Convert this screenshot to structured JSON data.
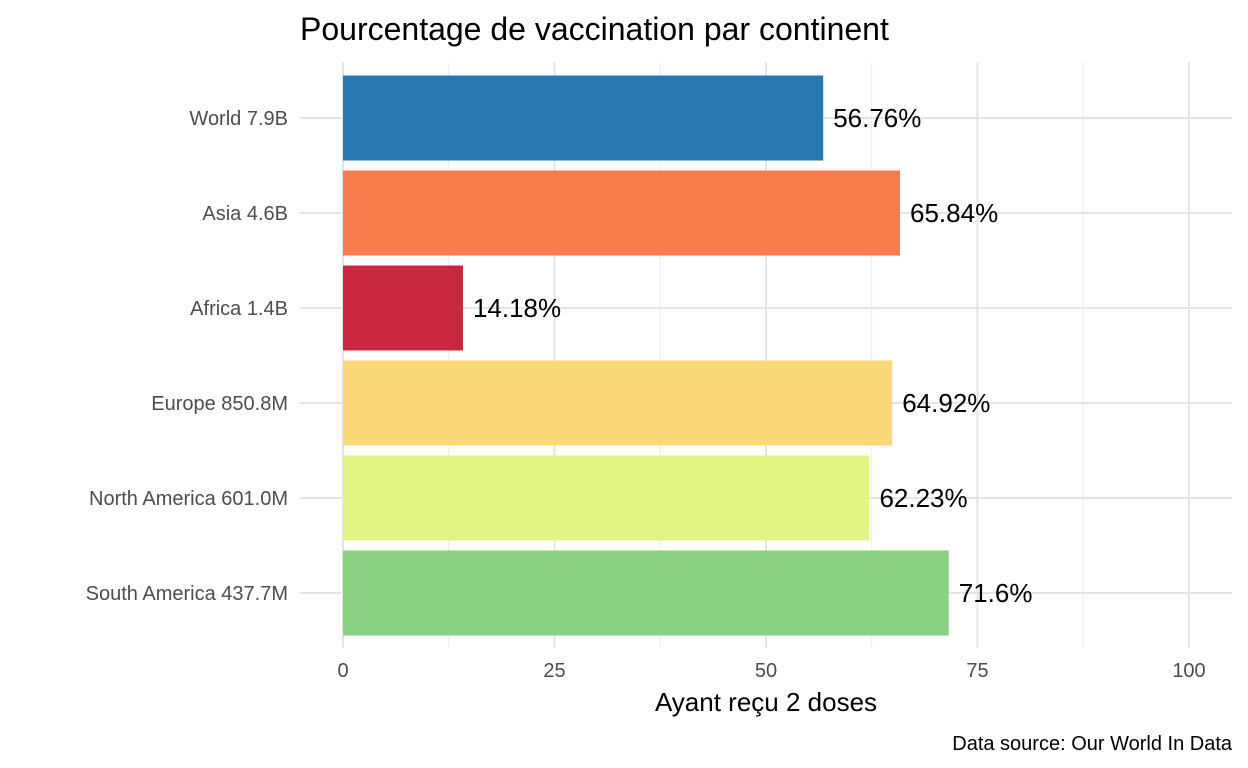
{
  "chart_data": {
    "type": "bar",
    "orientation": "horizontal",
    "title": "Pourcentage de vaccination par continent",
    "xlabel": "Ayant reçu 2 doses",
    "ylabel": "",
    "xlim": [
      0,
      100
    ],
    "x_ticks": [
      0,
      25,
      50,
      75,
      100
    ],
    "grid": true,
    "legend": "none",
    "caption": "Data source: Our World In Data",
    "categories": [
      "World 7.9B",
      "Asia 4.6B",
      "Africa 1.4B",
      "Europe 850.8M",
      "North America 601.0M",
      "South America 437.7M"
    ],
    "values": [
      56.76,
      65.84,
      14.18,
      64.92,
      62.23,
      71.6
    ],
    "value_labels": [
      "56.76%",
      "65.84%",
      "14.18%",
      "64.92%",
      "62.23%",
      "71.6%"
    ],
    "colors": [
      "#2b78b1",
      "#f87b4b",
      "#c9263f",
      "#fbd97b",
      "#e0f584",
      "#8ad082"
    ]
  }
}
